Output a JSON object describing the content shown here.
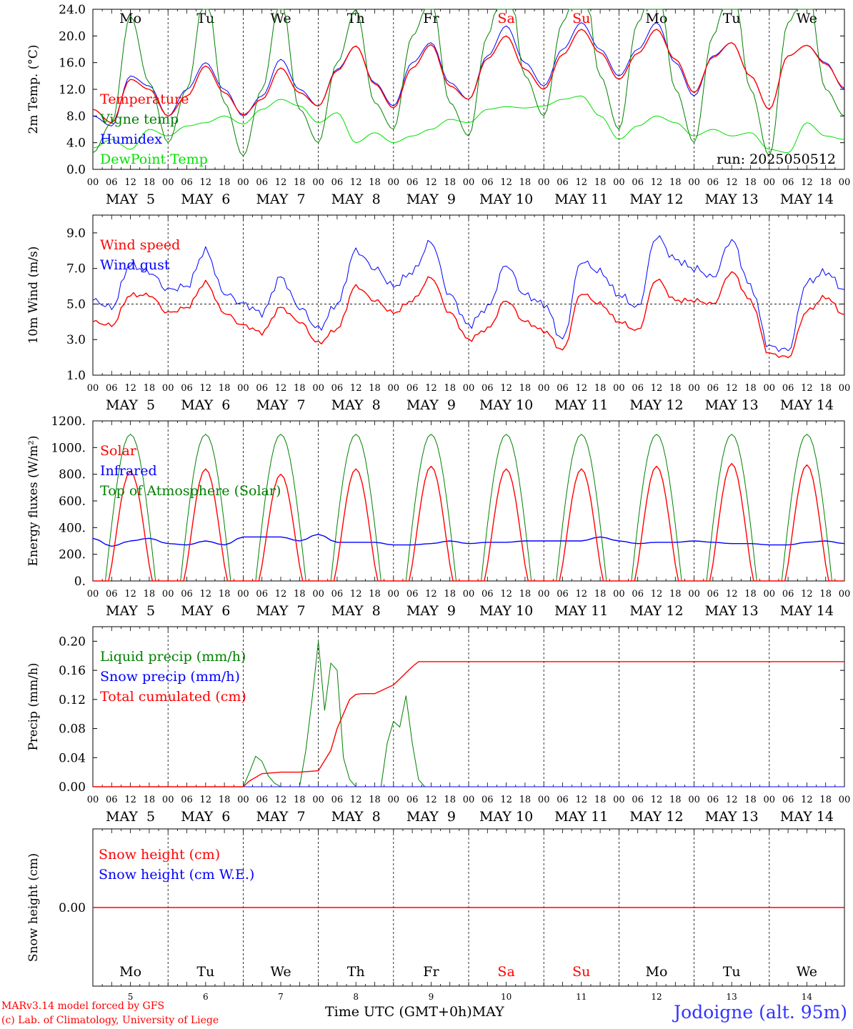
{
  "footer": {
    "model_credit": "MARv3.14 model forced by GFS",
    "lab_credit": "(c) Lab. of Climatology, University of Liege",
    "xaxis_title": "Time UTC (GMT+0h)",
    "xaxis_month": "MAY",
    "station": "Jodoigne (alt. 95m)"
  },
  "colors": {
    "red": "#ff0000",
    "green_dark": "#008000",
    "green_light": "#00e000",
    "blue": "#0000ff",
    "station_blue": "#3333ff"
  },
  "chart_data": [
    {
      "type": "line",
      "id": "temperature",
      "ylabel": "2m Temp. (°C)",
      "ylim": [
        0,
        24
      ],
      "yticks": [
        "0.0",
        "4.0",
        "8.0",
        "12.0",
        "16.0",
        "20.0",
        "24.0"
      ],
      "hline": null,
      "x_hours": [
        0,
        6,
        12,
        18,
        24,
        30,
        36,
        42,
        48,
        54,
        60,
        66,
        72,
        78,
        84,
        90,
        96,
        102,
        108,
        114,
        120,
        126,
        132,
        138,
        144,
        150,
        156,
        162,
        168,
        174,
        180,
        186,
        192,
        198,
        204,
        210,
        216,
        222,
        228,
        234,
        240
      ],
      "day_abbrevs": [
        "Mo",
        "Tu",
        "We",
        "Th",
        "Fr",
        "Sa",
        "Su",
        "Mo",
        "Tu",
        "We"
      ],
      "run_text": "run: 2025050512",
      "series": [
        {
          "name": "Temperature",
          "color": "red",
          "width": 1.4,
          "values": [
            9,
            7,
            13.5,
            12,
            8,
            11,
            15.5,
            11.5,
            8.2,
            10.5,
            15.2,
            11.5,
            9.5,
            14.8,
            18.5,
            12.8,
            9.2,
            15.2,
            18.7,
            12.5,
            10.5,
            16.6,
            20,
            15,
            12,
            17.2,
            21,
            17.5,
            13.5,
            17.4,
            21,
            16.5,
            11.5,
            16.8,
            19,
            14,
            9,
            17,
            18.6,
            15.8,
            12.2
          ]
        },
        {
          "name": "Vigne temp",
          "color": "green_dark",
          "width": 1,
          "values": [
            2.5,
            7,
            23,
            13,
            4,
            12,
            27,
            10,
            2,
            12,
            26,
            9,
            4,
            16,
            24,
            10,
            6,
            20,
            26,
            10,
            5,
            20,
            32,
            14,
            8,
            22,
            32,
            14,
            6,
            22,
            30,
            12,
            4,
            20,
            30,
            12,
            2,
            22,
            28,
            12,
            8
          ]
        },
        {
          "name": "Humidex",
          "color": "blue",
          "width": 1,
          "values": [
            8,
            6.5,
            14,
            12.5,
            8,
            12,
            16,
            12,
            8,
            11,
            16.5,
            12,
            9.5,
            15,
            18.5,
            13,
            9.5,
            16,
            19,
            13,
            10.5,
            17,
            21.5,
            16,
            12.5,
            18,
            22,
            18,
            14,
            18,
            22,
            16,
            11,
            17,
            19,
            14,
            9,
            17,
            18.6,
            16,
            12
          ]
        },
        {
          "name": "DewPoint Temp",
          "color": "green_light",
          "width": 1,
          "values": [
            3.2,
            4.5,
            3,
            6,
            5,
            6.5,
            7,
            8,
            6.8,
            9,
            10.5,
            9.5,
            7,
            8.5,
            4,
            5.5,
            4,
            5,
            6,
            7.5,
            7,
            9,
            9.4,
            9.2,
            9.5,
            10.5,
            11,
            8,
            4.5,
            6.5,
            8,
            7,
            5,
            6,
            5,
            5.5,
            3,
            2.5,
            7,
            5,
            4.5
          ]
        }
      ]
    },
    {
      "type": "line",
      "id": "wind",
      "ylabel": "10m Wind (m/s)",
      "ylim": [
        1,
        10
      ],
      "yticks": [
        "1.0",
        "3.0",
        "5.0",
        "7.0",
        "9.0"
      ],
      "hline": 5,
      "x_hours": [
        0,
        6,
        12,
        18,
        24,
        30,
        36,
        42,
        48,
        54,
        60,
        66,
        72,
        78,
        84,
        90,
        96,
        102,
        108,
        114,
        120,
        126,
        132,
        138,
        144,
        150,
        156,
        162,
        168,
        174,
        180,
        186,
        192,
        198,
        204,
        210,
        216,
        222,
        228,
        234,
        240
      ],
      "series": [
        {
          "name": "Wind speed",
          "color": "red",
          "width": 1.4,
          "values": [
            4,
            3.8,
            5.5,
            5.5,
            4.5,
            4.8,
            6.2,
            4.5,
            3.8,
            3.4,
            4.8,
            4,
            2.8,
            3.6,
            6,
            5.2,
            4.5,
            5.2,
            6.5,
            4.5,
            3,
            3.6,
            5.2,
            4,
            3.5,
            2.4,
            5.6,
            5,
            4,
            3.5,
            6.4,
            5.2,
            5.2,
            5,
            6.8,
            5.2,
            2.2,
            2,
            4.6,
            5.4,
            4.4
          ]
        },
        {
          "name": "Wind gust",
          "color": "blue",
          "width": 1,
          "values": [
            5.2,
            4.8,
            7.2,
            6.8,
            5.8,
            6,
            8,
            5.6,
            5,
            4.5,
            6.5,
            4.8,
            3.6,
            5,
            8,
            7,
            6,
            6.8,
            8.5,
            5.5,
            3.8,
            4.8,
            7.2,
            5.5,
            5,
            3,
            7.4,
            6.8,
            5.5,
            4.8,
            8.8,
            7.5,
            7,
            6.5,
            8.6,
            6,
            2.6,
            2.4,
            6.2,
            6.8,
            5.8
          ]
        }
      ]
    },
    {
      "type": "line",
      "id": "energy",
      "ylabel": "Energy fluxes (W/m²)",
      "ylim": [
        0,
        1200
      ],
      "yticks": [
        "0.",
        "200.",
        "400.",
        "600.",
        "800.",
        "1000.",
        "1200."
      ],
      "hline": null,
      "toa_peak": 1100,
      "solar_peaks": [
        820,
        840,
        800,
        840,
        860,
        840,
        840,
        860,
        880,
        870
      ],
      "x_hours": [
        0,
        6,
        12,
        18,
        24,
        30,
        36,
        42,
        48,
        54,
        60,
        66,
        72,
        78,
        84,
        90,
        96,
        102,
        108,
        114,
        120,
        126,
        132,
        138,
        144,
        150,
        156,
        162,
        168,
        174,
        180,
        186,
        192,
        198,
        204,
        210,
        216,
        222,
        228,
        234,
        240
      ],
      "series": [
        {
          "name": "Solar",
          "color": "red",
          "width": 1.4,
          "values": []
        },
        {
          "name": "Infrared",
          "color": "blue",
          "width": 1.4,
          "values": [
            320,
            260,
            300,
            320,
            280,
            270,
            300,
            270,
            330,
            330,
            330,
            300,
            350,
            290,
            290,
            290,
            270,
            270,
            280,
            300,
            280,
            290,
            290,
            300,
            300,
            300,
            300,
            330,
            300,
            280,
            290,
            290,
            300,
            290,
            280,
            280,
            270,
            270,
            290,
            300,
            280
          ]
        },
        {
          "name": "Top of Atmosphere (Solar)",
          "color": "green_dark",
          "width": 1,
          "values": []
        }
      ]
    },
    {
      "type": "line",
      "id": "precip",
      "ylabel": "Precip (mm/h)",
      "ylim": [
        0,
        0.22
      ],
      "yticks": [
        "0.00",
        "0.04",
        "0.08",
        "0.12",
        "0.16",
        "0.20"
      ],
      "hline": null,
      "x_hours": [
        0,
        48,
        50,
        54,
        60,
        66,
        72,
        76,
        78,
        82,
        84,
        86,
        88,
        90,
        96,
        102,
        104,
        108,
        240
      ],
      "series": [
        {
          "name": "Liquid precip (mm/h)",
          "color": "green_dark",
          "width": 1,
          "values": []
        },
        {
          "name": "Snow precip (mm/h)",
          "color": "blue",
          "width": 1,
          "values": []
        },
        {
          "name": "Total cumulated (cm)",
          "color": "red",
          "width": 1.4,
          "values": [
            0,
            0,
            0.008,
            0.018,
            0.02,
            0.02,
            0.022,
            0.05,
            0.08,
            0.12,
            0.127,
            0.128,
            0.128,
            0.128,
            0.14,
            0.165,
            0.172,
            0.172,
            0.172
          ]
        }
      ],
      "liquid_x": [
        0,
        48,
        50,
        52,
        54,
        56,
        58,
        60,
        66,
        68,
        70,
        72,
        74,
        76,
        78,
        80,
        82,
        84,
        86,
        88,
        90,
        92,
        94,
        96,
        98,
        100,
        102,
        104,
        106,
        110,
        240
      ],
      "liquid_y": [
        0,
        0,
        0.02,
        0.042,
        0.035,
        0.015,
        0.005,
        0,
        0,
        0.05,
        0.12,
        0.2,
        0.105,
        0.17,
        0.16,
        0.04,
        0.01,
        0,
        0,
        0,
        0,
        0,
        0.06,
        0.09,
        0.082,
        0.125,
        0.06,
        0.01,
        0,
        0,
        0
      ]
    },
    {
      "type": "line",
      "id": "snow",
      "ylabel": "Snow height (cm)",
      "ylim": [
        -1,
        1
      ],
      "yticks": [
        "0.00"
      ],
      "hline": null,
      "x_hours": [
        0,
        240
      ],
      "day_labels": [
        "Mo",
        "Tu",
        "We",
        "Th",
        "Fr",
        "Sa",
        "Su",
        "Mo",
        "Tu",
        "We"
      ],
      "day_numbers": [
        "5",
        "6",
        "7",
        "8",
        "9",
        "10",
        "11",
        "12",
        "13",
        "14"
      ],
      "series": [
        {
          "name": "Snow height (cm)",
          "color": "red",
          "width": 1.4,
          "values": [
            0,
            0
          ]
        },
        {
          "name": "Snow height (cm W.E.)",
          "color": "blue",
          "width": 1,
          "values": [
            0,
            0
          ]
        }
      ]
    }
  ],
  "date_labels": [
    "MAY  5",
    "MAY  6",
    "MAY  7",
    "MAY  8",
    "MAY  9",
    "MAY 10",
    "MAY 11",
    "MAY 12",
    "MAY 13",
    "MAY 14"
  ],
  "hour_ticks": [
    "00",
    "06",
    "12",
    "18"
  ],
  "final_tick": "00",
  "weekend_days": [
    5,
    6
  ]
}
